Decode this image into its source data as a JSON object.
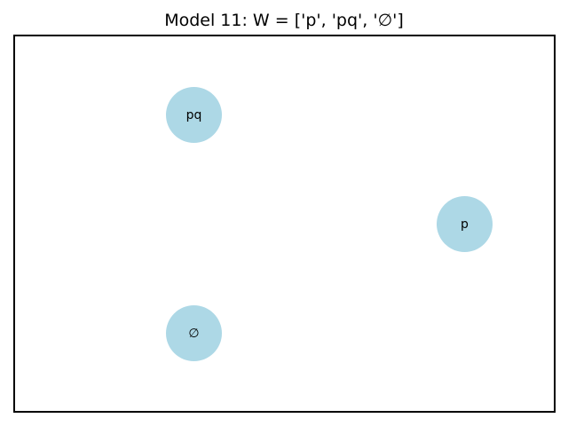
{
  "title": "Model 11: W = ['p', 'pq', '∅']",
  "node_color": "#add8e6",
  "nodes": [
    {
      "id": "pq",
      "label": "pq"
    },
    {
      "id": "p",
      "label": "p"
    },
    {
      "id": "empty",
      "label": "∅"
    }
  ]
}
